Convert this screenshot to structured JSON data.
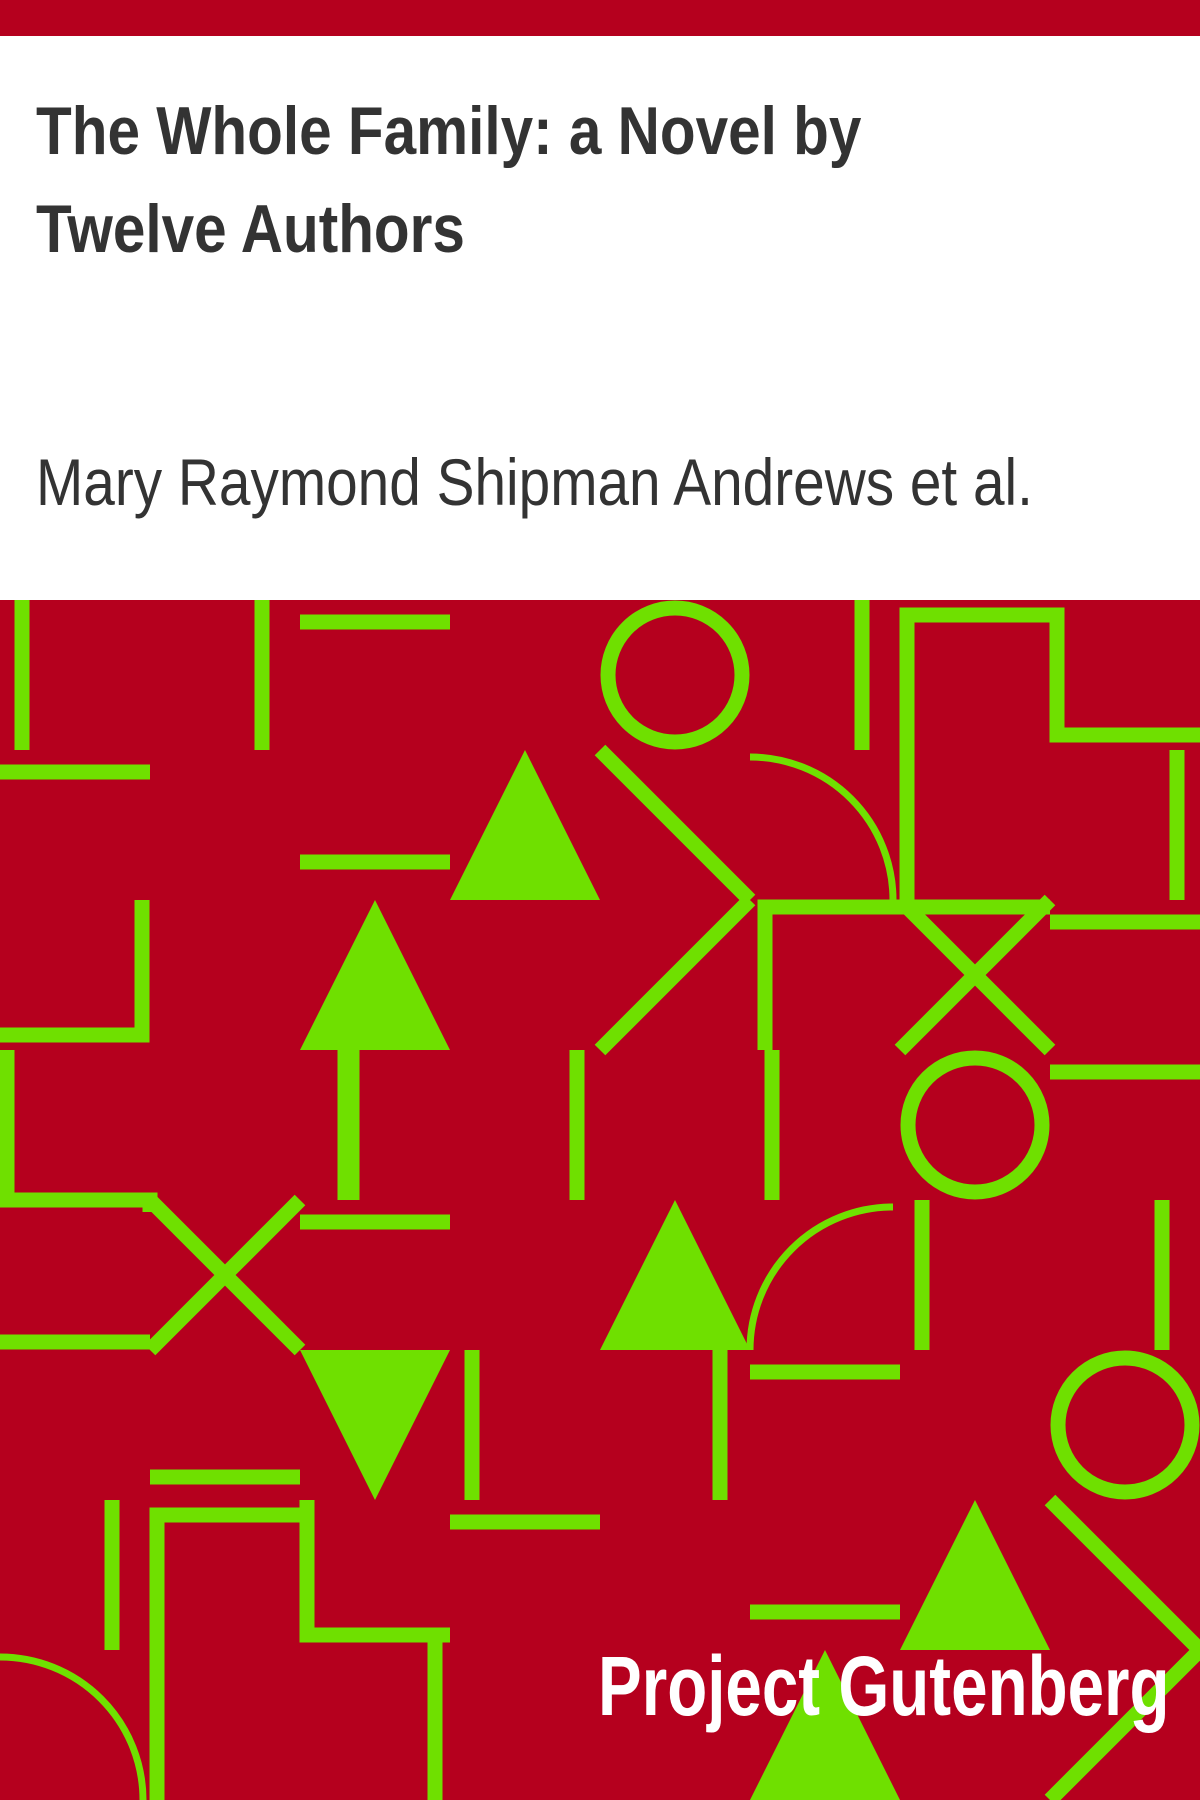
{
  "book": {
    "title": "The Whole Family: a Novel by Twelve Authors",
    "author": "Mary Raymond Shipman Andrews et al.",
    "publisher": "Project Gutenberg"
  },
  "colors": {
    "accent": "#b5001e",
    "pattern": "#6fe000",
    "text": "#333333",
    "background": "#ffffff"
  }
}
